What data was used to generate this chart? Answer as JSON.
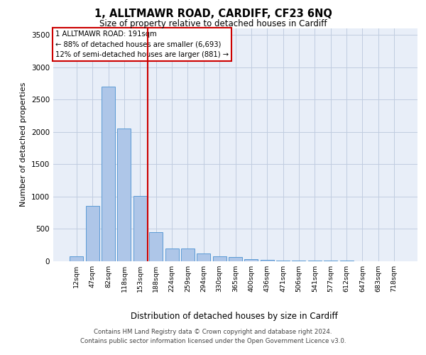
{
  "title": "1, ALLTMAWR ROAD, CARDIFF, CF23 6NQ",
  "subtitle": "Size of property relative to detached houses in Cardiff",
  "xlabel": "Distribution of detached houses by size in Cardiff",
  "ylabel": "Number of detached properties",
  "bar_labels": [
    "12sqm",
    "47sqm",
    "82sqm",
    "118sqm",
    "153sqm",
    "188sqm",
    "224sqm",
    "259sqm",
    "294sqm",
    "330sqm",
    "365sqm",
    "400sqm",
    "436sqm",
    "471sqm",
    "506sqm",
    "541sqm",
    "577sqm",
    "612sqm",
    "647sqm",
    "683sqm",
    "718sqm"
  ],
  "bar_values": [
    75,
    850,
    2700,
    2050,
    1010,
    450,
    195,
    195,
    110,
    75,
    55,
    30,
    15,
    10,
    5,
    2,
    1,
    1,
    0,
    0,
    0
  ],
  "bar_color": "#aec6e8",
  "bar_edge_color": "#5b9bd5",
  "vline_x": 4.5,
  "vline_color": "#cc0000",
  "annotation_line1": "1 ALLTMAWR ROAD: 191sqm",
  "annotation_line2": "← 88% of detached houses are smaller (6,693)",
  "annotation_line3": "12% of semi-detached houses are larger (881) →",
  "annotation_box_color": "#ffffff",
  "annotation_box_edge": "#cc0000",
  "ylim": [
    0,
    3600
  ],
  "yticks": [
    0,
    500,
    1000,
    1500,
    2000,
    2500,
    3000,
    3500
  ],
  "plot_background": "#e8eef8",
  "footer_line1": "Contains HM Land Registry data © Crown copyright and database right 2024.",
  "footer_line2": "Contains public sector information licensed under the Open Government Licence v3.0."
}
